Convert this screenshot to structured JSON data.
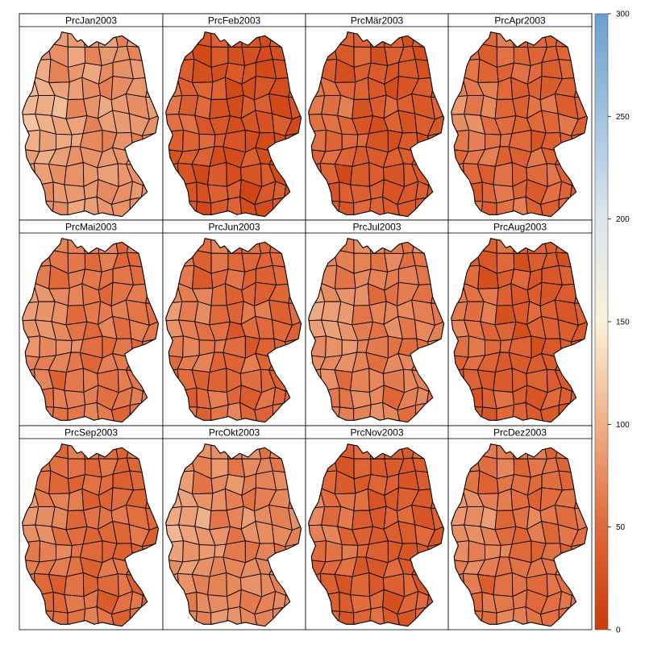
{
  "colors": {
    "high": "#6a9ed0",
    "mid_high": "#d9e6ee",
    "neutral": "#fbf1d7",
    "mid_low": "#efae87",
    "low": "#cc3a07",
    "border": "#000000"
  },
  "legend": {
    "ticks": [
      "300",
      "250",
      "200",
      "150",
      "100",
      "50",
      "0"
    ],
    "min": 0,
    "max": 300
  },
  "panels": [
    {
      "title": "PrcJan2003",
      "level": 82
    },
    {
      "title": "PrcFeb2003",
      "level": 28
    },
    {
      "title": "PrcMär2003",
      "level": 35
    },
    {
      "title": "PrcApr2003",
      "level": 48
    },
    {
      "title": "PrcMai2003",
      "level": 60
    },
    {
      "title": "PrcJun2003",
      "level": 50
    },
    {
      "title": "PrcJul2003",
      "level": 66
    },
    {
      "title": "PrcAug2003",
      "level": 38
    },
    {
      "title": "PrcSep2003",
      "level": 52
    },
    {
      "title": "PrcOkt2003",
      "level": 72
    },
    {
      "title": "PrcNov2003",
      "level": 40
    },
    {
      "title": "PrcDez2003",
      "level": 56
    }
  ]
}
